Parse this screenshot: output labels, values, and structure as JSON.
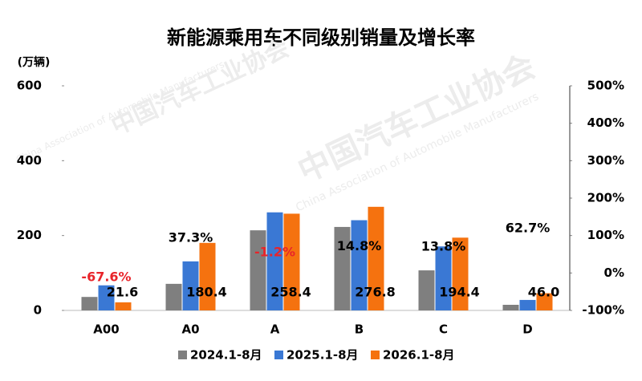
{
  "chart_data": {
    "type": "bar",
    "title": "新能源乘用车不同级别销量及增长率",
    "y_label": "(万辆)",
    "watermark": [
      "中国汽车工业协会",
      "China Association of Automobile Manufacturers"
    ],
    "categories": [
      "A00",
      "A0",
      "A",
      "B",
      "C",
      "D"
    ],
    "series": [
      {
        "name": "2024.1-8月",
        "color": "#7f7f7f",
        "values": [
          36,
          71,
          214,
          223,
          107,
          15
        ]
      },
      {
        "name": "2025.1-8月",
        "color": "#3a78d4",
        "values": [
          67,
          131,
          262,
          241,
          171,
          28
        ]
      },
      {
        "name": "2026.1-8月",
        "color": "#f5720f",
        "values": [
          21.6,
          180.4,
          258.4,
          276.8,
          194.4,
          46.0
        ],
        "value_labels": [
          "21.6",
          "180.4",
          "258.4",
          "276.8",
          "194.4",
          "46.0"
        ]
      }
    ],
    "growth": {
      "axis": "y2",
      "values": [
        -67.6,
        37.3,
        -1.2,
        14.8,
        13.8,
        62.7
      ],
      "value_labels": [
        "-67.6%",
        "37.3%",
        "-1.2%",
        "14.8%",
        "13.8%",
        "62.7%"
      ],
      "negative_color": "#e8242a",
      "color": "#000000"
    },
    "ylim": [
      0,
      600
    ],
    "yticks": [
      0,
      200,
      400,
      600
    ],
    "y2lim": [
      -100,
      500
    ],
    "y2ticks": [
      {
        "value": -100,
        "label": "-100%"
      },
      {
        "value": 0,
        "label": "0%"
      },
      {
        "value": 100,
        "label": "100%"
      },
      {
        "value": 200,
        "label": "200%"
      },
      {
        "value": 300,
        "label": "300%"
      },
      {
        "value": 400,
        "label": "400%"
      },
      {
        "value": 500,
        "label": "500%"
      }
    ],
    "grid": false
  }
}
